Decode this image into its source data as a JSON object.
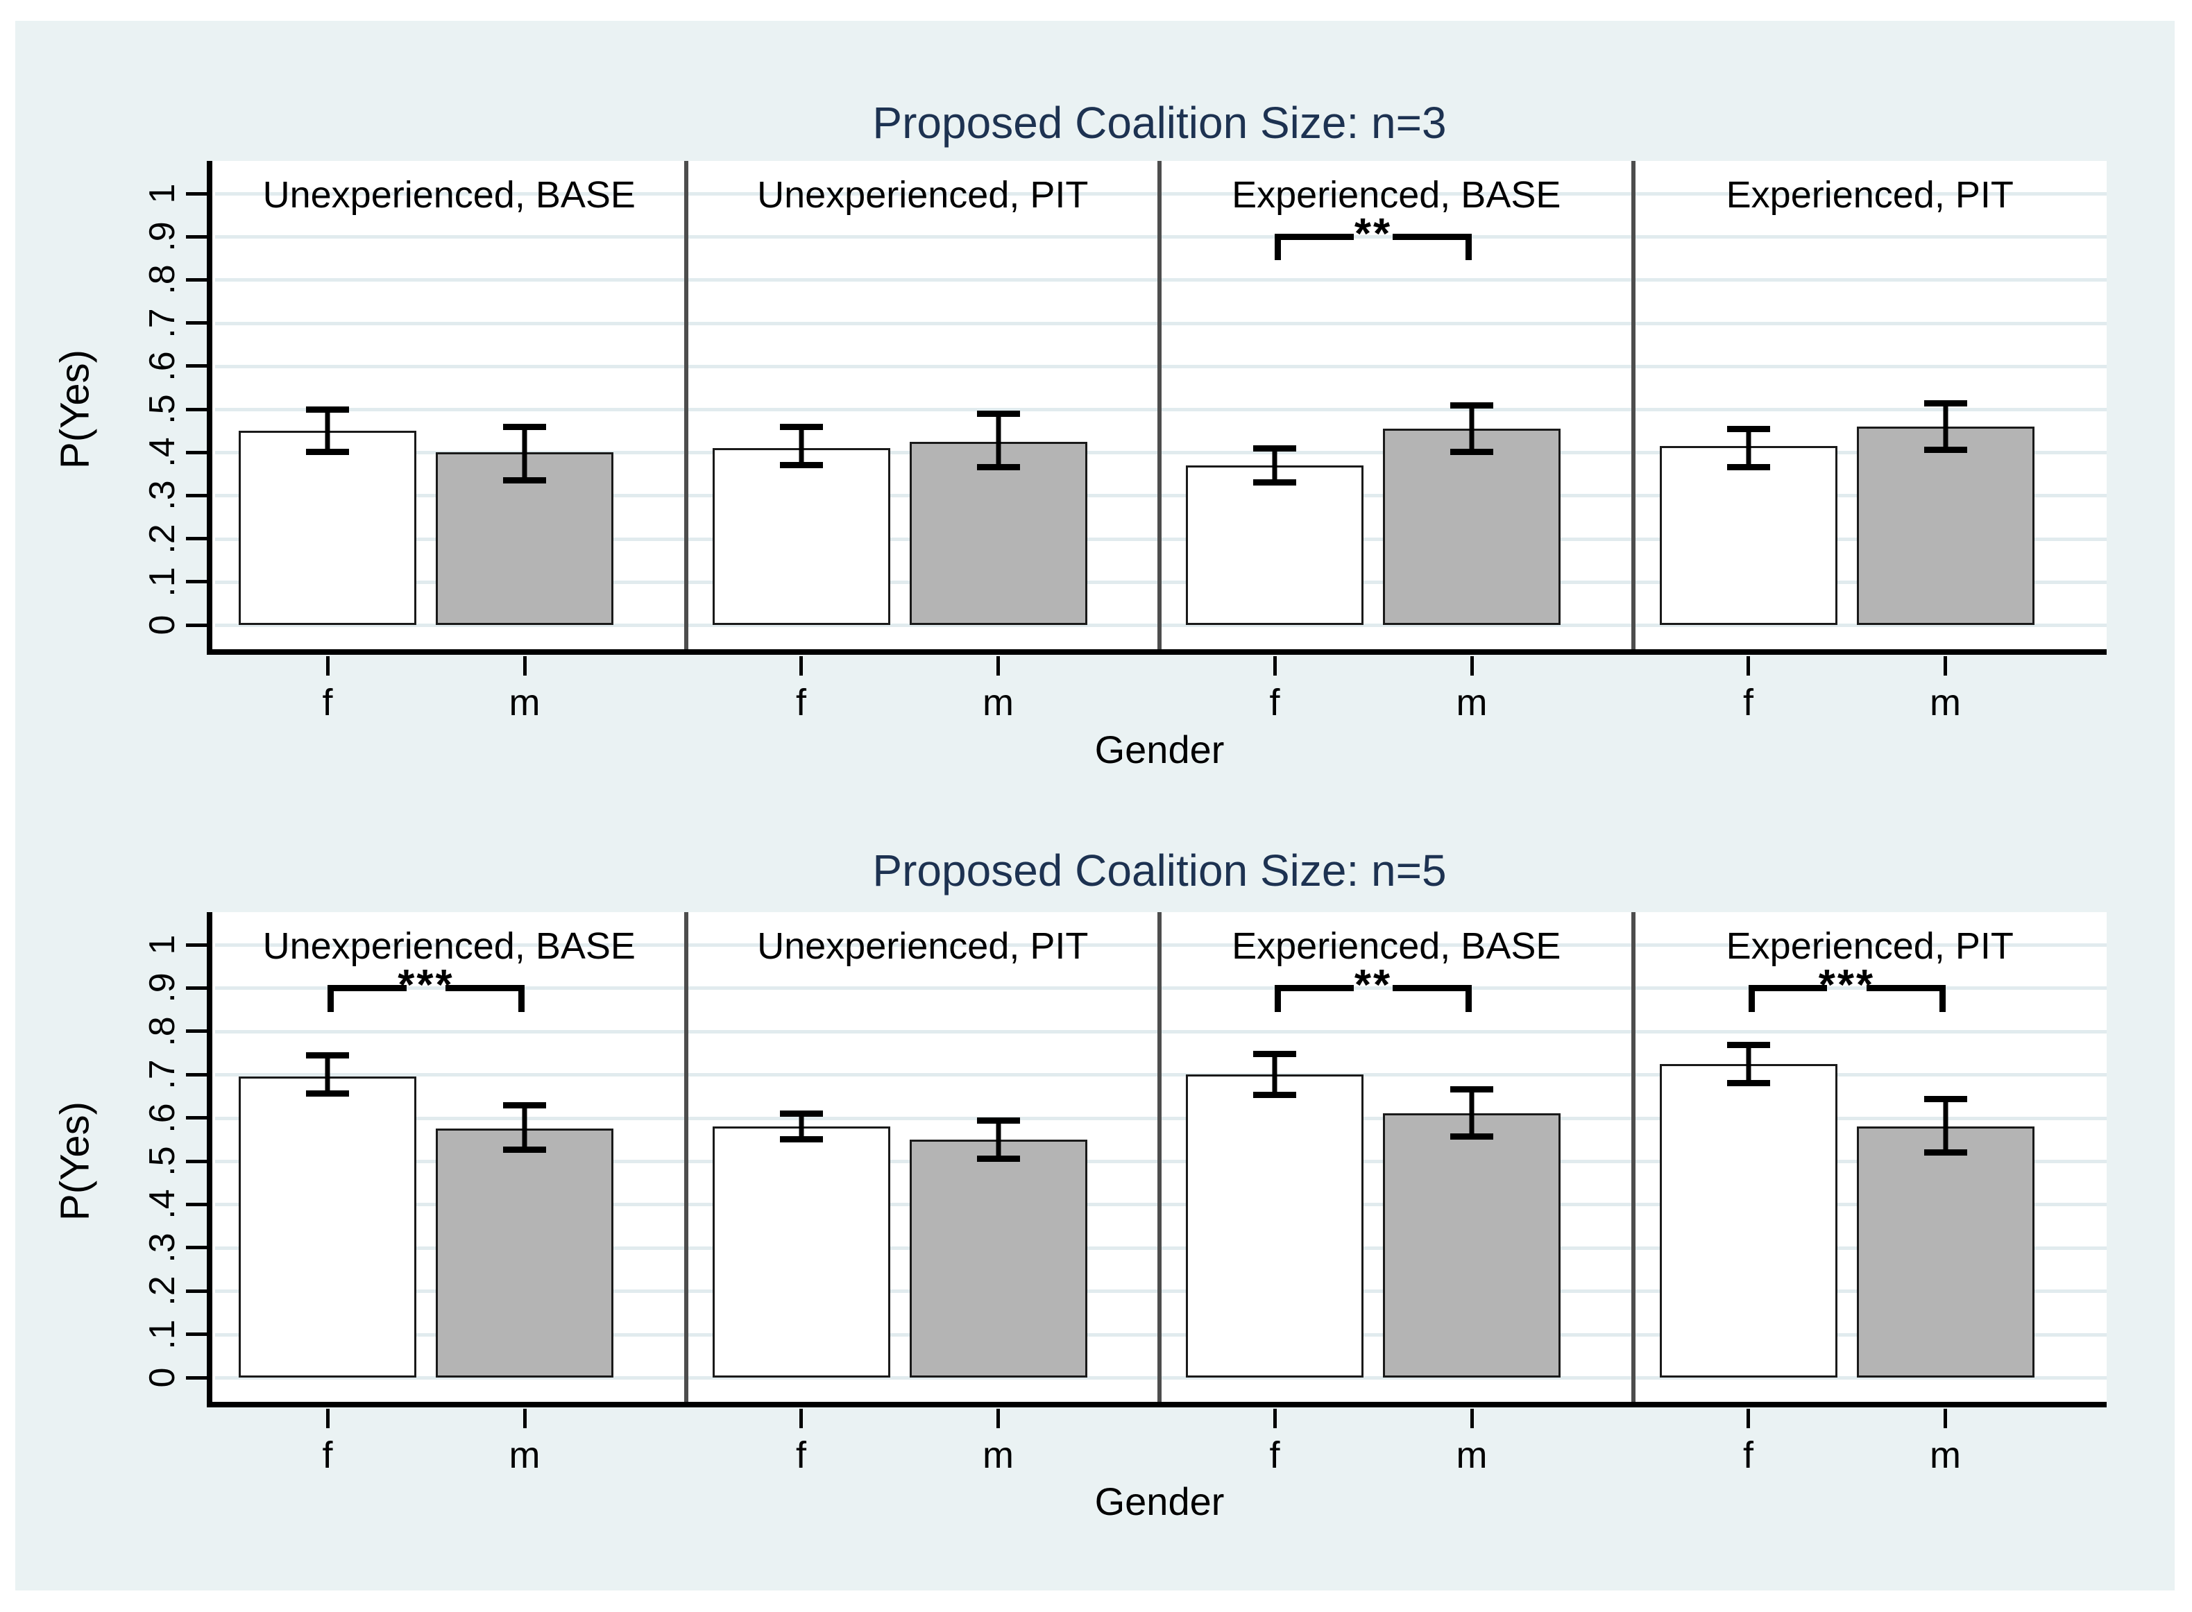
{
  "page": {
    "background": "#ffffff",
    "figure_background": "#EAF2F3"
  },
  "colors": {
    "title_text": "#1D3251",
    "body_text": "#000000",
    "bar_f_fill": "#FFFFFF",
    "bar_m_fill": "#B4B4B4",
    "bar_border": "#1A1A1A",
    "gridline": "#E1EBEE",
    "panel_separator": "#4D4D4D",
    "axis_line": "#000000",
    "plot_background": "#FFFFFF"
  },
  "chart_data": [
    {
      "type": "bar",
      "title": "Proposed Coalition Size: n=3",
      "ylabel": "P(Yes)",
      "xlabel": "Gender",
      "categories": [
        "f",
        "m"
      ],
      "ylim": [
        0,
        1
      ],
      "ytick_labels": [
        "0",
        ".1",
        ".2",
        ".3",
        ".4",
        ".5",
        ".6",
        ".7",
        ".8",
        ".9",
        "1"
      ],
      "grid": true,
      "legend_position": "none",
      "panels": [
        {
          "subtitle": "Unexperienced, BASE",
          "significance": "",
          "series": [
            {
              "name": "f",
              "value": 0.45,
              "ci_low": 0.4,
              "ci_high": 0.5
            },
            {
              "name": "m",
              "value": 0.4,
              "ci_low": 0.335,
              "ci_high": 0.46
            }
          ]
        },
        {
          "subtitle": "Unexperienced, PIT",
          "significance": "",
          "series": [
            {
              "name": "f",
              "value": 0.41,
              "ci_low": 0.37,
              "ci_high": 0.46
            },
            {
              "name": "m",
              "value": 0.425,
              "ci_low": 0.365,
              "ci_high": 0.49
            }
          ]
        },
        {
          "subtitle": "Experienced, BASE",
          "significance": "**",
          "series": [
            {
              "name": "f",
              "value": 0.37,
              "ci_low": 0.33,
              "ci_high": 0.41
            },
            {
              "name": "m",
              "value": 0.455,
              "ci_low": 0.4,
              "ci_high": 0.51
            }
          ]
        },
        {
          "subtitle": "Experienced, PIT",
          "significance": "",
          "series": [
            {
              "name": "f",
              "value": 0.415,
              "ci_low": 0.365,
              "ci_high": 0.455
            },
            {
              "name": "m",
              "value": 0.46,
              "ci_low": 0.405,
              "ci_high": 0.515
            }
          ]
        }
      ]
    },
    {
      "type": "bar",
      "title": "Proposed Coalition Size: n=5",
      "ylabel": "P(Yes)",
      "xlabel": "Gender",
      "categories": [
        "f",
        "m"
      ],
      "ylim": [
        0,
        1
      ],
      "ytick_labels": [
        "0",
        ".1",
        ".2",
        ".3",
        ".4",
        ".5",
        ".6",
        ".7",
        ".8",
        ".9",
        "1"
      ],
      "grid": true,
      "legend_position": "none",
      "panels": [
        {
          "subtitle": "Unexperienced, BASE",
          "significance": "***",
          "series": [
            {
              "name": "f",
              "value": 0.695,
              "ci_low": 0.655,
              "ci_high": 0.745
            },
            {
              "name": "m",
              "value": 0.575,
              "ci_low": 0.525,
              "ci_high": 0.63
            }
          ]
        },
        {
          "subtitle": "Unexperienced, PIT",
          "significance": "",
          "series": [
            {
              "name": "f",
              "value": 0.58,
              "ci_low": 0.55,
              "ci_high": 0.61
            },
            {
              "name": "m",
              "value": 0.55,
              "ci_low": 0.505,
              "ci_high": 0.595
            }
          ]
        },
        {
          "subtitle": "Experienced, BASE",
          "significance": "**",
          "series": [
            {
              "name": "f",
              "value": 0.7,
              "ci_low": 0.653,
              "ci_high": 0.748
            },
            {
              "name": "m",
              "value": 0.61,
              "ci_low": 0.556,
              "ci_high": 0.666
            }
          ]
        },
        {
          "subtitle": "Experienced, PIT",
          "significance": "***",
          "series": [
            {
              "name": "f",
              "value": 0.725,
              "ci_low": 0.68,
              "ci_high": 0.77
            },
            {
              "name": "m",
              "value": 0.58,
              "ci_low": 0.52,
              "ci_high": 0.645
            }
          ]
        }
      ]
    }
  ]
}
